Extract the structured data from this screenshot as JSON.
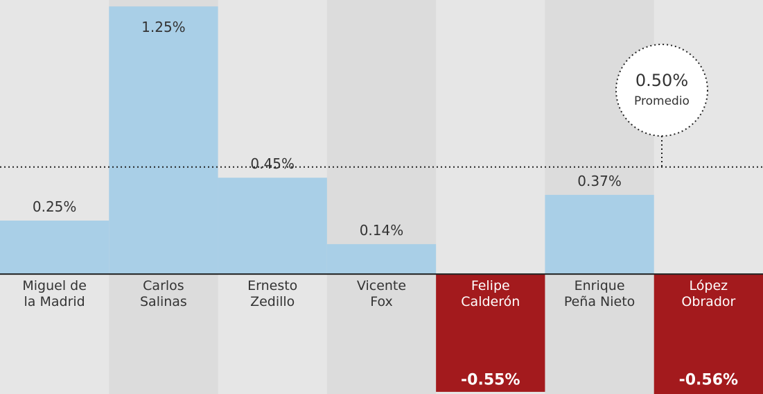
{
  "chart_data": {
    "type": "bar",
    "categories": [
      "Miguel de\nla Madrid",
      "Carlos\nSalinas",
      "Ernesto\nZedillo",
      "Vicente\nFox",
      "Felipe\nCalderón",
      "Enrique\nPeña Nieto",
      "López\nObrador"
    ],
    "values": [
      0.25,
      1.25,
      0.45,
      0.14,
      -0.55,
      0.37,
      -0.56
    ],
    "value_labels": [
      "0.25%",
      "1.25%",
      "0.45%",
      "0.14%",
      "-0.55%",
      "0.37%",
      "-0.56%"
    ],
    "color": "#a9cfe7",
    "negative_color": "#a31a1d",
    "ylim": [
      -0.56,
      1.28
    ],
    "average": {
      "value": 0.5,
      "label": "0.50%",
      "name": "Promedio"
    }
  }
}
